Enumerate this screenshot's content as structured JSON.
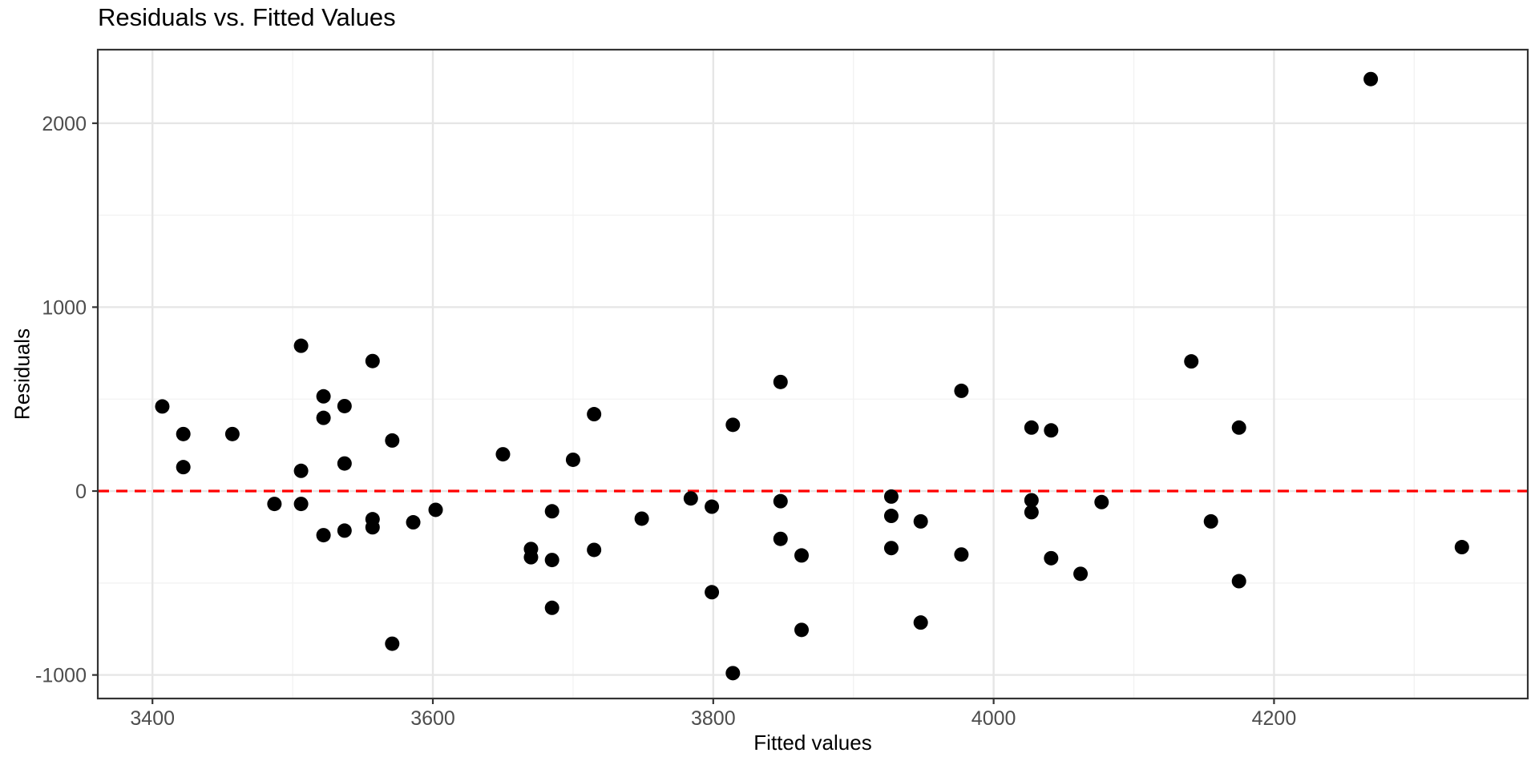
{
  "chart_data": {
    "type": "scatter",
    "title": "Residuals vs. Fitted Values",
    "xlabel": "Fitted values",
    "ylabel": "Residuals",
    "xlim": [
      3361,
      4381
    ],
    "ylim": [
      -1128,
      2400
    ],
    "x_ticks": [
      3400,
      3600,
      3800,
      4000,
      4200
    ],
    "y_ticks": [
      -1000,
      0,
      1000,
      2000
    ],
    "x_minor_ticks": [
      3500,
      3700,
      3900,
      4100,
      4300
    ],
    "y_minor_ticks": [
      -500,
      500,
      1500
    ],
    "grid": true,
    "legend": false,
    "reference_line": {
      "y": 0,
      "color": "#FF0000",
      "style": "dashed"
    },
    "point_color": "#000000",
    "points": [
      [
        3407,
        460
      ],
      [
        3422,
        310
      ],
      [
        3422,
        130
      ],
      [
        3457,
        310
      ],
      [
        3487,
        -70
      ],
      [
        3506,
        790
      ],
      [
        3506,
        110
      ],
      [
        3506,
        -70
      ],
      [
        3522,
        515
      ],
      [
        3522,
        398
      ],
      [
        3522,
        -240
      ],
      [
        3537,
        462
      ],
      [
        3537,
        150
      ],
      [
        3537,
        -215
      ],
      [
        3557,
        707
      ],
      [
        3557,
        -153
      ],
      [
        3557,
        -197
      ],
      [
        3571,
        275
      ],
      [
        3571,
        -830
      ],
      [
        3586,
        -170
      ],
      [
        3602,
        -102
      ],
      [
        3650,
        200
      ],
      [
        3670,
        -315
      ],
      [
        3670,
        -360
      ],
      [
        3685,
        -110
      ],
      [
        3685,
        -375
      ],
      [
        3685,
        -635
      ],
      [
        3700,
        170
      ],
      [
        3715,
        418
      ],
      [
        3715,
        -320
      ],
      [
        3749,
        -150
      ],
      [
        3784,
        -40
      ],
      [
        3799,
        -85
      ],
      [
        3799,
        -550
      ],
      [
        3814,
        360
      ],
      [
        3814,
        -990
      ],
      [
        3848,
        593
      ],
      [
        3848,
        -55
      ],
      [
        3848,
        -260
      ],
      [
        3863,
        -350
      ],
      [
        3863,
        -755
      ],
      [
        3927,
        -30
      ],
      [
        3927,
        -135
      ],
      [
        3927,
        -310
      ],
      [
        3948,
        -165
      ],
      [
        3948,
        -715
      ],
      [
        3977,
        545
      ],
      [
        3977,
        -345
      ],
      [
        4027,
        345
      ],
      [
        4027,
        -50
      ],
      [
        4027,
        -115
      ],
      [
        4041,
        330
      ],
      [
        4041,
        -365
      ],
      [
        4062,
        -450
      ],
      [
        4077,
        -60
      ],
      [
        4141,
        705
      ],
      [
        4155,
        -165
      ],
      [
        4175,
        345
      ],
      [
        4175,
        -490
      ],
      [
        4269,
        2240
      ],
      [
        4334,
        -305
      ]
    ],
    "styles": {
      "panel_background": "#FFFFFF",
      "panel_border_color": "#333333",
      "grid_major_color": "#E6E6E6",
      "grid_minor_color": "#F2F2F2",
      "tick_color": "#333333",
      "tick_label_color": "#4D4D4D",
      "point_radius": 9
    }
  }
}
